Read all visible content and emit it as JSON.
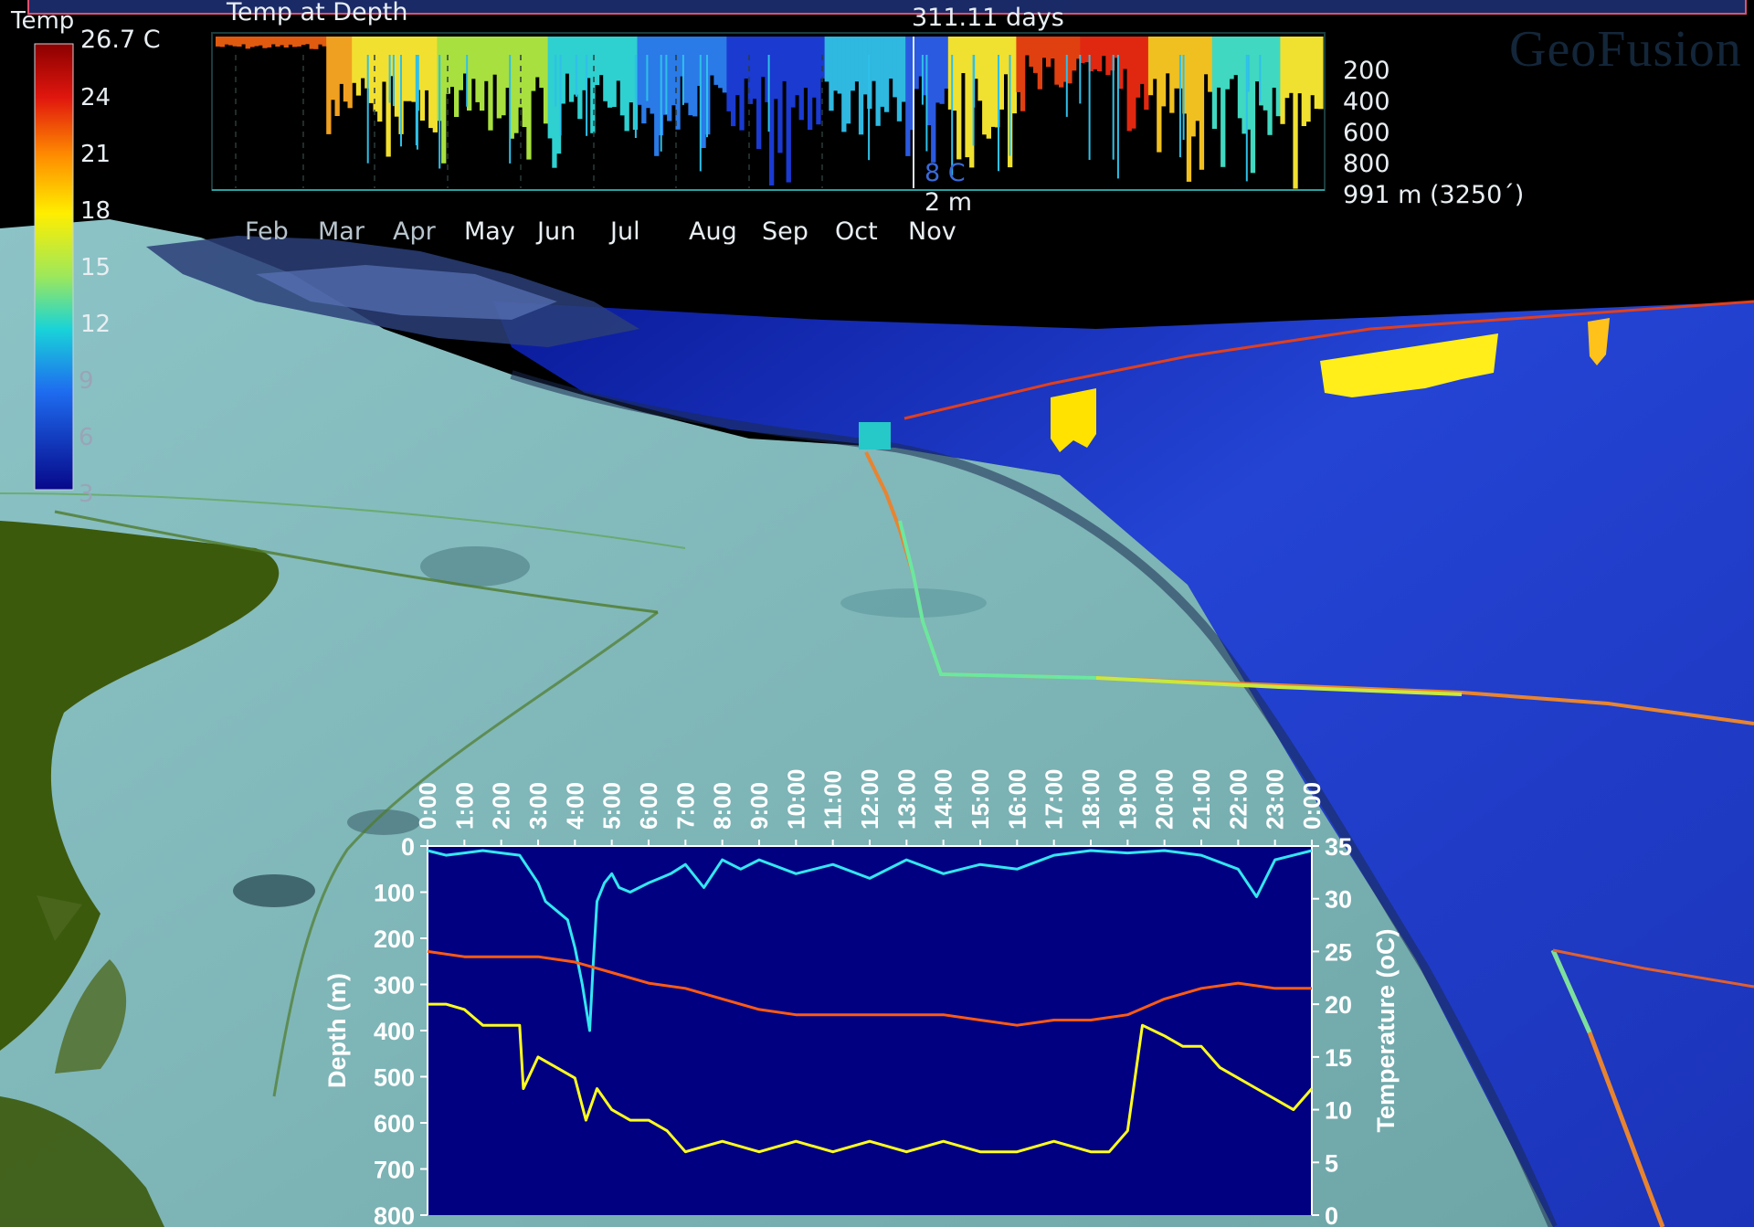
{
  "window": {
    "top_bar_title": ""
  },
  "brand": {
    "text": "GeoFusion"
  },
  "legend": {
    "title": "Temp",
    "max_label": "26.7 C",
    "tick_labels": [
      "24",
      "21",
      "18",
      "15",
      "12",
      "9",
      "6",
      "3"
    ]
  },
  "timeline": {
    "title": "Temp at Depth",
    "duration": "311.11 days",
    "months": [
      "Feb",
      "Mar",
      "Apr",
      "May",
      "Jun",
      "Jul",
      "Aug",
      "Sep",
      "Oct",
      "Nov"
    ],
    "depth_labels": [
      "200",
      "400",
      "600",
      "800",
      "991 m (3250´)"
    ],
    "cursor_temp": "8 C",
    "cursor_depth": "2 m"
  },
  "colors": {
    "plot_bg": "#000080",
    "depth_trace": "#33e6f0",
    "temperature_trace": "#ff5a14",
    "secondary_trace": "#ffff1e",
    "water_deep": "#1e37c3",
    "shelf": "#78b4b4",
    "land": "#3c5a0c"
  },
  "chart_data": {
    "type": "line",
    "x_ticks": [
      "0:00",
      "1:00",
      "2:00",
      "3:00",
      "4:00",
      "5:00",
      "6:00",
      "7:00",
      "8:00",
      "9:00",
      "10:00",
      "11:00",
      "12:00",
      "13:00",
      "14:00",
      "15:00",
      "16:00",
      "17:00",
      "18:00",
      "19:00",
      "20:00",
      "21:00",
      "22:00",
      "23:00",
      "0:00"
    ],
    "ylabel": "Depth (m)",
    "ylim": [
      0,
      800
    ],
    "y_ticks": [
      0,
      100,
      200,
      300,
      400,
      500,
      600,
      700,
      800
    ],
    "y2label": "Temperature (oC)",
    "y2lim": [
      0,
      35
    ],
    "y2_ticks": [
      0,
      5,
      10,
      15,
      20,
      25,
      30,
      35
    ],
    "grid": false,
    "series": [
      {
        "axis": "depth",
        "color": "#33e6f0",
        "x": [
          0,
          0.5,
          1,
          1.5,
          2,
          2.5,
          3,
          3.2,
          3.5,
          3.8,
          4,
          4.2,
          4.4,
          4.5,
          4.6,
          4.8,
          5,
          5.2,
          5.5,
          6,
          6.3,
          6.6,
          7,
          7.5,
          8,
          8.5,
          9,
          10,
          11,
          12,
          13,
          14,
          15,
          16,
          17,
          18,
          19,
          20,
          21,
          22,
          22.5,
          23,
          23.5,
          24
        ],
        "y": [
          10,
          20,
          15,
          10,
          15,
          20,
          80,
          120,
          140,
          160,
          220,
          300,
          400,
          250,
          120,
          80,
          60,
          90,
          100,
          80,
          70,
          60,
          40,
          90,
          30,
          50,
          30,
          60,
          40,
          70,
          30,
          60,
          40,
          50,
          20,
          10,
          15,
          10,
          20,
          50,
          110,
          30,
          20,
          10
        ]
      },
      {
        "axis": "temperature",
        "color": "#ff5a14",
        "x": [
          0,
          1,
          2,
          3,
          4,
          5,
          6,
          7,
          8,
          9,
          10,
          11,
          12,
          13,
          14,
          15,
          16,
          17,
          18,
          19,
          20,
          21,
          22,
          23,
          24
        ],
        "y": [
          25,
          24.5,
          24.5,
          24.5,
          24,
          23,
          22,
          21.5,
          20.5,
          19.5,
          19,
          19,
          19,
          19,
          19,
          18.5,
          18,
          18.5,
          18.5,
          19,
          20.5,
          21.5,
          22,
          21.5,
          21.5
        ]
      },
      {
        "axis": "temperature",
        "color": "#ffff1e",
        "x": [
          0,
          0.5,
          1,
          1.5,
          2,
          2.5,
          2.6,
          3,
          3.5,
          4,
          4.3,
          4.6,
          5,
          5.5,
          6,
          6.5,
          7,
          8,
          9,
          10,
          11,
          12,
          13,
          14,
          15,
          16,
          17,
          18,
          18.5,
          19,
          19.4,
          20,
          20.5,
          21,
          21.5,
          22,
          22.5,
          23,
          23.5,
          24
        ],
        "y": [
          20,
          20,
          19.5,
          18,
          18,
          18,
          12,
          15,
          14,
          13,
          9,
          12,
          10,
          9,
          9,
          8,
          6,
          7,
          6,
          7,
          6,
          7,
          6,
          7,
          6,
          6,
          7,
          6,
          6,
          8,
          18,
          17,
          16,
          16,
          14,
          13,
          12,
          11,
          10,
          12
        ]
      }
    ]
  }
}
